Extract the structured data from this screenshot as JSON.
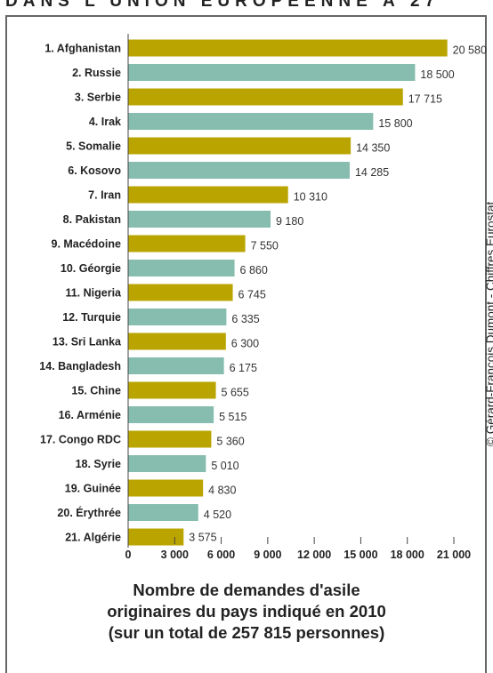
{
  "header": {
    "text": "DANS L'UNION EUROPÉENNE À 27"
  },
  "caption": {
    "line1": "Nombre de demandes d'asile",
    "line2": "originaires du pays indiqué en 2010",
    "line3": "(sur un total de 257 815 personnes)"
  },
  "credit": "© Gérard-François Dumont - Chiffres Eurostat.",
  "colors": {
    "olive": "#b9a400",
    "teal": "#86bdae"
  },
  "chart_data": {
    "type": "bar",
    "orientation": "horizontal",
    "categories": [
      "1. Afghanistan",
      "2. Russie",
      "3. Serbie",
      "4. Irak",
      "5. Somalie",
      "6. Kosovo",
      "7. Iran",
      "8. Pakistan",
      "9. Macédoine",
      "10. Géorgie",
      "11. Nigeria",
      "12. Turquie",
      "13. Sri Lanka",
      "14. Bangladesh",
      "15. Chine",
      "16. Arménie",
      "17. Congo RDC",
      "18. Syrie",
      "19. Guinée",
      "20. Érythrée",
      "21. Algérie"
    ],
    "values": [
      20580,
      18500,
      17715,
      15800,
      14350,
      14285,
      10310,
      9180,
      7550,
      6860,
      6745,
      6335,
      6300,
      6175,
      5655,
      5515,
      5360,
      5010,
      4830,
      4520,
      3575
    ],
    "value_labels": [
      "20 580",
      "18 500",
      "17 715",
      "15 800",
      "14 350",
      "14 285",
      "10 310",
      "9 180",
      "7 550",
      "6 860",
      "6 745",
      "6 335",
      "6 300",
      "6 175",
      "5 655",
      "5 515",
      "5 360",
      "5 010",
      "4 830",
      "4 520",
      "3 575"
    ],
    "bar_colors": [
      "olive",
      "teal",
      "olive",
      "teal",
      "olive",
      "teal",
      "olive",
      "teal",
      "olive",
      "teal",
      "olive",
      "teal",
      "olive",
      "teal",
      "olive",
      "teal",
      "olive",
      "teal",
      "olive",
      "teal",
      "olive"
    ],
    "xlim": [
      0,
      21000
    ],
    "xticks": [
      0,
      3000,
      6000,
      9000,
      12000,
      15000,
      18000,
      21000
    ],
    "xtick_labels": [
      "0",
      "3 000",
      "6 000",
      "9 000",
      "12 000",
      "15 000",
      "18 000",
      "21 000"
    ],
    "grid": false
  }
}
